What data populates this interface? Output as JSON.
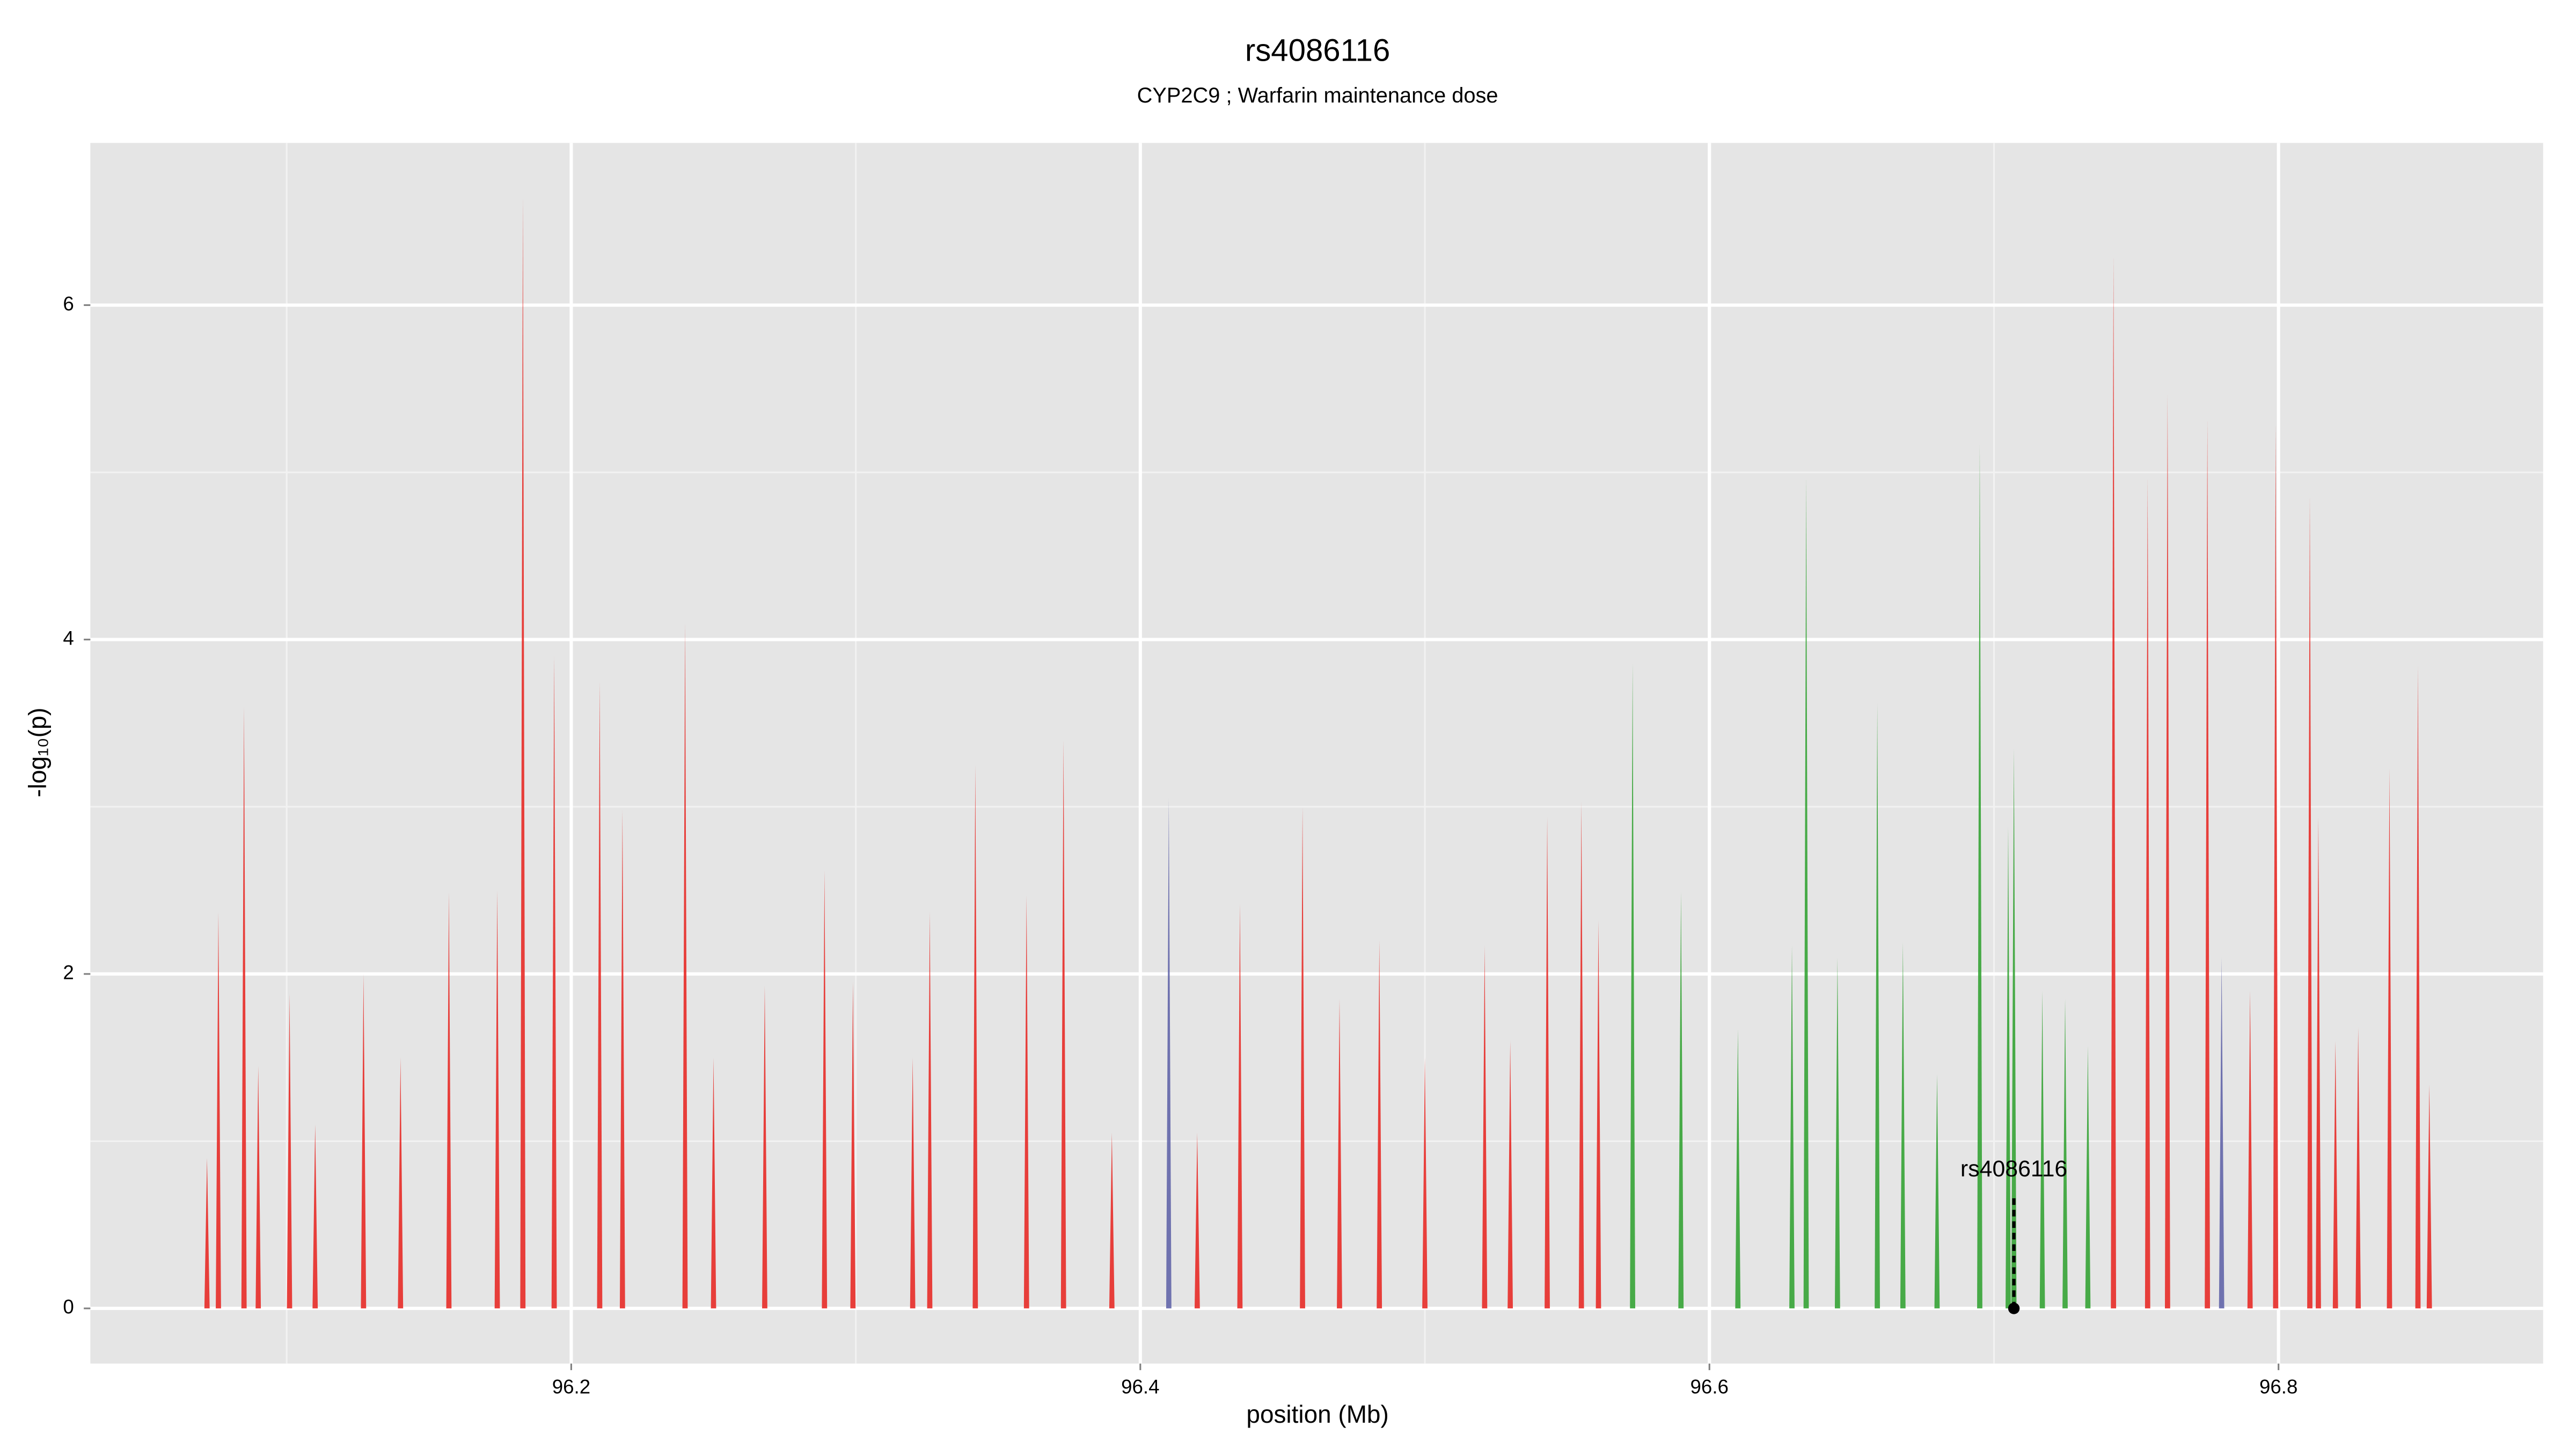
{
  "chart_data": {
    "type": "spike",
    "title": "rs4086116",
    "subtitle": "CYP2C9 ; Warfarin maintenance dose",
    "x_label": "position (Mb)",
    "y_label": "-log₁₀(p)",
    "xlim": [
      96.031,
      96.893
    ],
    "ylim": [
      -0.33,
      6.97
    ],
    "xticks": [
      96.2,
      96.4,
      96.6,
      96.8
    ],
    "yticks": [
      0,
      2,
      4,
      6
    ],
    "xminor": [
      96.1,
      96.3,
      96.5,
      96.7
    ],
    "yminor": [
      1,
      3,
      5
    ],
    "grid": true,
    "background": "#e5e5e5",
    "series": [
      {
        "color": "#e8211c",
        "x": [
          96.072,
          96.076,
          96.085,
          96.09,
          96.101,
          96.11,
          96.127,
          96.14,
          96.157,
          96.174,
          96.183,
          96.194,
          96.21,
          96.218,
          96.24,
          96.25,
          96.268,
          96.289,
          96.299,
          96.32,
          96.326,
          96.342,
          96.36,
          96.373,
          96.39,
          96.42,
          96.435,
          96.457,
          96.47,
          96.484,
          96.5,
          96.521,
          96.53,
          96.543,
          96.555,
          96.561,
          96.742,
          96.754,
          96.761,
          96.775,
          96.79,
          96.799,
          96.811,
          96.814,
          96.82,
          96.828,
          96.839,
          96.849,
          96.853
        ],
        "values": [
          0.9,
          2.37,
          3.6,
          1.45,
          1.88,
          1.1,
          2.0,
          1.5,
          2.49,
          2.5,
          6.65,
          3.9,
          3.75,
          2.98,
          4.1,
          1.5,
          1.93,
          2.62,
          1.95,
          1.5,
          2.37,
          3.25,
          2.47,
          3.4,
          1.05,
          1.05,
          2.42,
          3.0,
          1.85,
          2.2,
          1.5,
          2.17,
          1.6,
          2.94,
          3.03,
          2.32,
          6.3,
          4.97,
          5.47,
          5.32,
          1.9,
          5.29,
          4.86,
          2.94,
          1.6,
          1.68,
          3.23,
          3.84,
          1.34
        ]
      },
      {
        "color": "#2ca02c",
        "x": [
          96.573,
          96.59,
          96.61,
          96.629,
          96.634,
          96.645,
          96.659,
          96.668,
          96.68,
          96.695,
          96.705,
          96.707,
          96.717,
          96.725,
          96.733
        ],
        "values": [
          3.86,
          2.49,
          1.67,
          2.17,
          4.97,
          2.1,
          3.62,
          2.19,
          1.4,
          5.17,
          2.88,
          3.35,
          1.9,
          1.85,
          1.57
        ]
      },
      {
        "color": "#5b5ea6",
        "x": [
          96.41,
          96.78
        ],
        "values": [
          3.05,
          2.1
        ]
      }
    ],
    "highlight": {
      "label": "rs4086116",
      "x": 96.707,
      "y": 0
    }
  }
}
